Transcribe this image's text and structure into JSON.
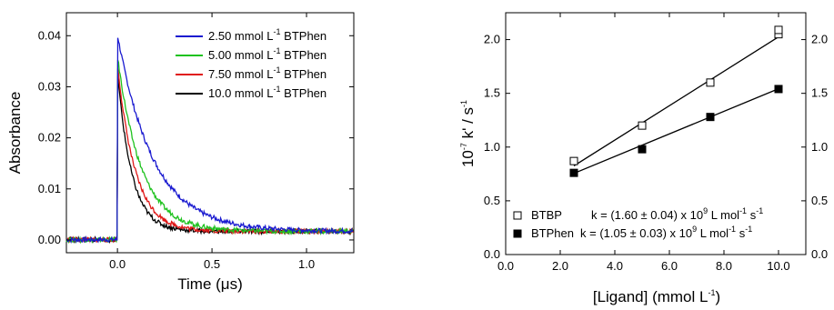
{
  "chart_data": [
    {
      "type": "line",
      "xlabel_main": "Time (",
      "xlabel_mu": "μ",
      "xlabel_tail": "s)",
      "ylabel": "Absorbance",
      "xlim": [
        -0.27,
        1.25
      ],
      "ylim": [
        -0.0025,
        0.0445
      ],
      "x_ticks": [
        0.0,
        0.5,
        1.0
      ],
      "x_tick_labels": [
        "0.0",
        "0.5",
        "1.0"
      ],
      "y_ticks": [
        0.0,
        0.01,
        0.02,
        0.03,
        0.04
      ],
      "y_tick_labels": [
        "0.00",
        "0.01",
        "0.02",
        "0.03",
        "0.04"
      ],
      "legend_position": "top-right",
      "series": [
        {
          "label_pre": "2.50 mmol L",
          "label_sup": "-1",
          "label_post": " BTPhen",
          "color": "#1a1ad0",
          "peak": 0.0402,
          "baseline": 0.0017,
          "tau": 0.19
        },
        {
          "label_pre": "5.00 mmol L",
          "label_sup": "-1",
          "label_post": " BTPhen",
          "color": "#1fc21f",
          "peak": 0.036,
          "baseline": 0.0017,
          "tau": 0.125
        },
        {
          "label_pre": "7.50 mmol L",
          "label_sup": "-1",
          "label_post": " BTPhen",
          "color": "#e01818",
          "peak": 0.0345,
          "baseline": 0.0017,
          "tau": 0.093
        },
        {
          "label_pre": "10.0 mmol L",
          "label_sup": "-1",
          "label_post": " BTPhen",
          "color": "#000000",
          "peak": 0.033,
          "baseline": 0.0017,
          "tau": 0.075
        }
      ]
    },
    {
      "type": "scatter",
      "xlabel_pre": "[Ligand] (mmol L",
      "xlabel_sup": "-1",
      "xlabel_post": ")",
      "ylabel_a": "10",
      "ylabel_a_sup": "-7",
      "ylabel_b": " k' / s",
      "ylabel_b_sup": "-1",
      "xlim": [
        0,
        11
      ],
      "ylim": [
        0,
        2.25
      ],
      "x_ticks": [
        0,
        2,
        4,
        6,
        8,
        10
      ],
      "x_tick_labels": [
        "0.0",
        "2.0",
        "4.0",
        "6.0",
        "8.0",
        "10.0"
      ],
      "y_ticks": [
        0,
        0.5,
        1.0,
        1.5,
        2.0
      ],
      "y_tick_labels": [
        "0.0",
        "0.5",
        "1.0",
        "1.5",
        "2.0"
      ],
      "legend_position": "bottom-left",
      "series": [
        {
          "name": "BTBP",
          "marker": "open-square",
          "x": [
            2.5,
            5.0,
            7.5,
            10.0,
            10.0
          ],
          "y": [
            0.87,
            1.2,
            1.6,
            2.05,
            2.09
          ],
          "fit": {
            "x": [
              2.5,
              10.0
            ],
            "y": [
              0.825,
              2.025
            ]
          },
          "legend_name": "BTBP",
          "legend_eq_pre": "k = (1.60 ± 0.04) x 10",
          "legend_eq_sup1": "9",
          "legend_eq_mid": " L mol",
          "legend_eq_sup2": "-1",
          "legend_eq_s": " s",
          "legend_eq_sup3": "-1"
        },
        {
          "name": "BTPhen",
          "marker": "filled-square",
          "x": [
            2.5,
            5.0,
            7.5,
            10.0
          ],
          "y": [
            0.76,
            0.98,
            1.28,
            1.54
          ],
          "fit": {
            "x": [
              2.5,
              10.0
            ],
            "y": [
              0.755,
              1.5425
            ]
          },
          "legend_name": "BTPhen",
          "legend_eq_pre": "k = (1.05 ± 0.03) x 10",
          "legend_eq_sup1": "9",
          "legend_eq_mid": " L mol",
          "legend_eq_sup2": "-1",
          "legend_eq_s": " s",
          "legend_eq_sup3": "-1"
        }
      ]
    }
  ]
}
